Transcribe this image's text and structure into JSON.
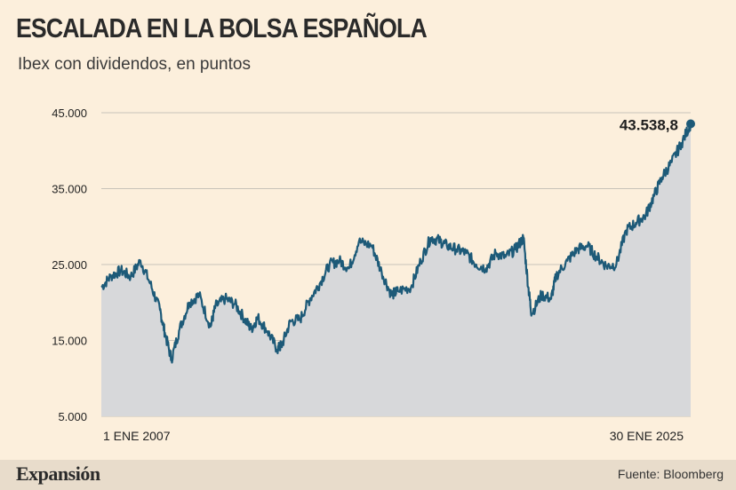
{
  "header": {
    "title": "ESCALADA EN LA BOLSA ESPAÑOLA",
    "subtitle": "Ibex con dividendos, en puntos"
  },
  "footer": {
    "brand": "Expansión",
    "source": "Fuente: Bloomberg"
  },
  "colors": {
    "line": "#1d5a78",
    "area": "#d7d8da",
    "grid": "#c9c3ba",
    "background": "#fcefdc"
  },
  "chart_data": {
    "type": "area",
    "title": "ESCALADA EN LA BOLSA ESPAÑOLA",
    "subtitle": "Ibex con dividendos, en puntos",
    "xlabel": "",
    "ylabel": "",
    "ylim": [
      5000,
      45000
    ],
    "yticks": [
      5000,
      15000,
      25000,
      35000,
      45000
    ],
    "ytick_labels": [
      "5.000",
      "15.000",
      "25.000",
      "35.000",
      "45.000"
    ],
    "x_range": [
      2007.0,
      2025.08
    ],
    "x_labels": [
      "1 ENE 2007",
      "30 ENE 2025"
    ],
    "grid": true,
    "series": [
      {
        "x": [
          2007.0,
          2007.3,
          2007.6,
          2007.9,
          2008.2,
          2008.5,
          2008.8,
          2008.95,
          2009.15,
          2009.4,
          2009.7,
          2010.0,
          2010.35,
          2010.5,
          2010.8,
          2011.1,
          2011.4,
          2011.6,
          2011.8,
          2012.1,
          2012.4,
          2012.55,
          2012.8,
          2013.1,
          2013.4,
          2013.7,
          2014.0,
          2014.3,
          2014.6,
          2014.9,
          2015.3,
          2015.6,
          2015.9,
          2016.1,
          2016.5,
          2016.8,
          2017.1,
          2017.35,
          2017.6,
          2017.9,
          2018.2,
          2018.5,
          2018.8,
          2019.1,
          2019.4,
          2019.7,
          2019.95,
          2020.1,
          2020.2,
          2020.5,
          2020.8,
          2020.95,
          2021.3,
          2021.6,
          2021.9,
          2022.2,
          2022.5,
          2022.8,
          2023.1,
          2023.4,
          2023.7,
          2023.95,
          2024.2,
          2024.5,
          2024.8,
          2025.08
        ],
        "y": [
          22000,
          23500,
          24200,
          23400,
          25500,
          22500,
          19000,
          16000,
          12500,
          16500,
          20000,
          21000,
          16800,
          19500,
          20500,
          19800,
          17800,
          16500,
          18000,
          16200,
          13800,
          14500,
          17500,
          17800,
          20500,
          22500,
          25000,
          25500,
          24500,
          28000,
          27500,
          24000,
          21000,
          21500,
          22000,
          25500,
          28500,
          28200,
          27500,
          27000,
          26500,
          25000,
          24500,
          26500,
          26000,
          27000,
          28500,
          22000,
          18500,
          21000,
          20500,
          23500,
          25500,
          27000,
          27500,
          26000,
          24800,
          25000,
          29500,
          30500,
          31500,
          34000,
          36500,
          38500,
          41000,
          43538.8
        ]
      }
    ],
    "annotations": [
      {
        "text": "43.538,8",
        "x": 2025.08,
        "y": 43538.8
      }
    ]
  }
}
